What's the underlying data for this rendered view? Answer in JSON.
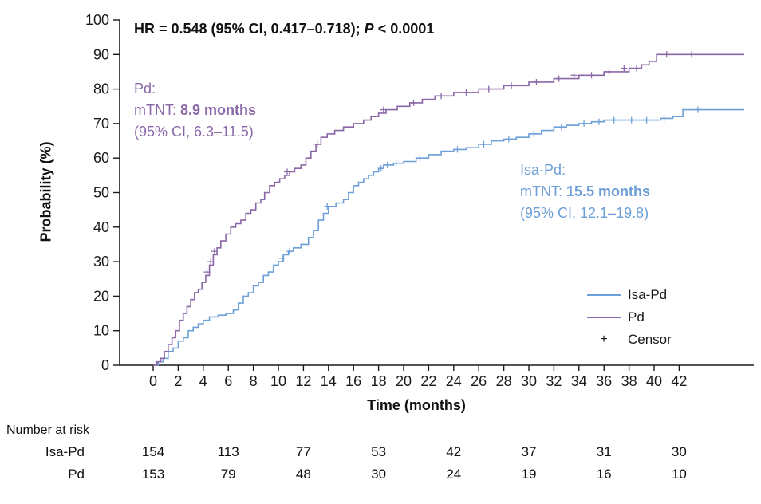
{
  "hr_annotation": {
    "text_before_p": "HR = 0.548 (95% CI, 0.417–0.718); ",
    "p_italic": "P",
    "text_after_p": " < 0.0001"
  },
  "annotations": {
    "pd": {
      "line1": "Pd:",
      "line2_normal": "mTNT: ",
      "line2_bold": "8.9 months",
      "line3": "(95% CI, 6.3–11.5)"
    },
    "isapd": {
      "line1": "Isa-Pd:",
      "line2_normal": "mTNT: ",
      "line2_bold": "15.5 months",
      "line3": "(95% CI, 12.1–19.8)"
    }
  },
  "legend": {
    "items": [
      {
        "label": "Isa-Pd",
        "type": "line",
        "color": "#6D9FD8"
      },
      {
        "label": "Pd",
        "type": "line",
        "color": "#8A68A8"
      },
      {
        "label": "Censor",
        "type": "plus",
        "color": "#1a1a1a",
        "symbol": "+"
      }
    ]
  },
  "risk_table": {
    "title": "Number at risk",
    "times": [
      0,
      6,
      12,
      18,
      24,
      30,
      36,
      42
    ],
    "rows": [
      {
        "label": "Isa-Pd",
        "values": [
          154,
          113,
          77,
          53,
          42,
          37,
          31,
          30
        ]
      },
      {
        "label": "Pd",
        "values": [
          153,
          79,
          48,
          30,
          24,
          19,
          16,
          10
        ]
      }
    ]
  },
  "chart_data": {
    "type": "line",
    "step": true,
    "title": "",
    "xlabel": "Time (months)",
    "ylabel": "Probability (%)",
    "xlim": [
      0,
      47.5
    ],
    "ylim": [
      0,
      100
    ],
    "x_ticks": [
      0,
      2,
      4,
      6,
      8,
      10,
      12,
      14,
      16,
      18,
      20,
      22,
      24,
      26,
      28,
      30,
      32,
      34,
      36,
      38,
      40,
      42
    ],
    "y_ticks": [
      0,
      10,
      20,
      30,
      40,
      50,
      60,
      70,
      80,
      90,
      100
    ],
    "grid": false,
    "legend_position": "lower right",
    "hazard_ratio": {
      "hr": 0.548,
      "ci_low": 0.417,
      "ci_high": 0.718,
      "p": "< 0.0001"
    },
    "series": [
      {
        "name": "Isa-Pd",
        "color": "#6D9FD8",
        "median_months": 15.5,
        "ci": "12.1–19.8",
        "points": [
          [
            0,
            0
          ],
          [
            0.4,
            1
          ],
          [
            0.8,
            2
          ],
          [
            1.2,
            4
          ],
          [
            1.6,
            5
          ],
          [
            2,
            7
          ],
          [
            2.4,
            8
          ],
          [
            2.8,
            10
          ],
          [
            3.2,
            11
          ],
          [
            3.6,
            12
          ],
          [
            4,
            13
          ],
          [
            4.5,
            14
          ],
          [
            5.2,
            14.5
          ],
          [
            5.8,
            15
          ],
          [
            6.4,
            16
          ],
          [
            6.8,
            18
          ],
          [
            7.2,
            20
          ],
          [
            7.6,
            21
          ],
          [
            8,
            23
          ],
          [
            8.4,
            24
          ],
          [
            8.8,
            26
          ],
          [
            9.2,
            27
          ],
          [
            9.6,
            29
          ],
          [
            10,
            30
          ],
          [
            10.4,
            32
          ],
          [
            10.8,
            33
          ],
          [
            11.2,
            34
          ],
          [
            11.8,
            35
          ],
          [
            12.4,
            37
          ],
          [
            12.8,
            39
          ],
          [
            13.2,
            42
          ],
          [
            13.6,
            44
          ],
          [
            14,
            46
          ],
          [
            14.6,
            47
          ],
          [
            15.2,
            48
          ],
          [
            15.6,
            50
          ],
          [
            16,
            52
          ],
          [
            16.4,
            53
          ],
          [
            16.8,
            54
          ],
          [
            17.2,
            55
          ],
          [
            17.6,
            56
          ],
          [
            18,
            57
          ],
          [
            18.4,
            58
          ],
          [
            19.2,
            58.5
          ],
          [
            20,
            59
          ],
          [
            21,
            60
          ],
          [
            22,
            61
          ],
          [
            23,
            62
          ],
          [
            24,
            62.5
          ],
          [
            25,
            63
          ],
          [
            26,
            64
          ],
          [
            27,
            65
          ],
          [
            28,
            65.5
          ],
          [
            29,
            66
          ],
          [
            30,
            67
          ],
          [
            31,
            68
          ],
          [
            32,
            69
          ],
          [
            33,
            69.5
          ],
          [
            34,
            70
          ],
          [
            35,
            70.5
          ],
          [
            36,
            71
          ],
          [
            40.5,
            71.5
          ],
          [
            41.5,
            72
          ],
          [
            42.3,
            74
          ],
          [
            47.2,
            74
          ]
        ],
        "censors": [
          [
            10.3,
            31
          ],
          [
            10.9,
            33
          ],
          [
            13.9,
            46
          ],
          [
            18.2,
            57
          ],
          [
            18.7,
            58
          ],
          [
            19.4,
            58.5
          ],
          [
            21.3,
            60
          ],
          [
            24.3,
            62.5
          ],
          [
            26.4,
            64
          ],
          [
            28.4,
            65.5
          ],
          [
            30.4,
            67
          ],
          [
            32.6,
            69
          ],
          [
            34.4,
            70
          ],
          [
            35.6,
            70.5
          ],
          [
            36.8,
            71
          ],
          [
            38.2,
            71
          ],
          [
            39.4,
            71
          ],
          [
            40.8,
            71.5
          ],
          [
            43.5,
            74
          ]
        ]
      },
      {
        "name": "Pd",
        "color": "#8A68A8",
        "median_months": 8.9,
        "ci": "6.3–11.5",
        "points": [
          [
            0,
            0
          ],
          [
            0.3,
            1
          ],
          [
            0.6,
            2
          ],
          [
            0.9,
            4
          ],
          [
            1.2,
            6
          ],
          [
            1.5,
            8
          ],
          [
            1.8,
            10
          ],
          [
            2.1,
            13
          ],
          [
            2.4,
            15
          ],
          [
            2.7,
            17
          ],
          [
            3,
            19
          ],
          [
            3.3,
            21
          ],
          [
            3.6,
            22
          ],
          [
            3.9,
            24
          ],
          [
            4.2,
            26
          ],
          [
            4.5,
            29
          ],
          [
            4.8,
            32
          ],
          [
            5.1,
            34
          ],
          [
            5.4,
            36
          ],
          [
            5.8,
            38
          ],
          [
            6.2,
            40
          ],
          [
            6.6,
            41
          ],
          [
            7,
            42
          ],
          [
            7.4,
            44
          ],
          [
            7.8,
            45
          ],
          [
            8.2,
            47
          ],
          [
            8.6,
            48
          ],
          [
            8.9,
            50
          ],
          [
            9.3,
            52
          ],
          [
            9.7,
            53
          ],
          [
            10.1,
            54
          ],
          [
            10.5,
            55
          ],
          [
            10.9,
            56
          ],
          [
            11.3,
            57
          ],
          [
            11.8,
            58
          ],
          [
            12.2,
            60
          ],
          [
            12.6,
            62
          ],
          [
            13,
            64
          ],
          [
            13.4,
            66
          ],
          [
            13.9,
            67
          ],
          [
            14.5,
            68
          ],
          [
            15.2,
            69
          ],
          [
            16,
            70
          ],
          [
            16.8,
            71
          ],
          [
            17.4,
            72
          ],
          [
            18,
            73
          ],
          [
            18.6,
            74
          ],
          [
            19.5,
            75
          ],
          [
            20.5,
            76
          ],
          [
            21.5,
            77
          ],
          [
            22.5,
            78
          ],
          [
            24,
            79
          ],
          [
            26,
            80
          ],
          [
            28,
            81
          ],
          [
            30,
            82
          ],
          [
            32,
            83
          ],
          [
            34,
            84
          ],
          [
            36,
            85
          ],
          [
            38,
            86
          ],
          [
            39,
            87
          ],
          [
            39.6,
            88
          ],
          [
            40.2,
            90
          ],
          [
            47.2,
            90
          ]
        ],
        "censors": [
          [
            4.3,
            27
          ],
          [
            4.6,
            30
          ],
          [
            4.9,
            33
          ],
          [
            10.7,
            56
          ],
          [
            13.1,
            64
          ],
          [
            18.4,
            74
          ],
          [
            20.8,
            76
          ],
          [
            23,
            78
          ],
          [
            25,
            79
          ],
          [
            26.8,
            80
          ],
          [
            28.6,
            81
          ],
          [
            30.6,
            82
          ],
          [
            32.4,
            83
          ],
          [
            33.6,
            84
          ],
          [
            35,
            84
          ],
          [
            36.4,
            85
          ],
          [
            37.6,
            86
          ],
          [
            38.6,
            86
          ],
          [
            41,
            90
          ],
          [
            43,
            90
          ]
        ]
      }
    ]
  }
}
